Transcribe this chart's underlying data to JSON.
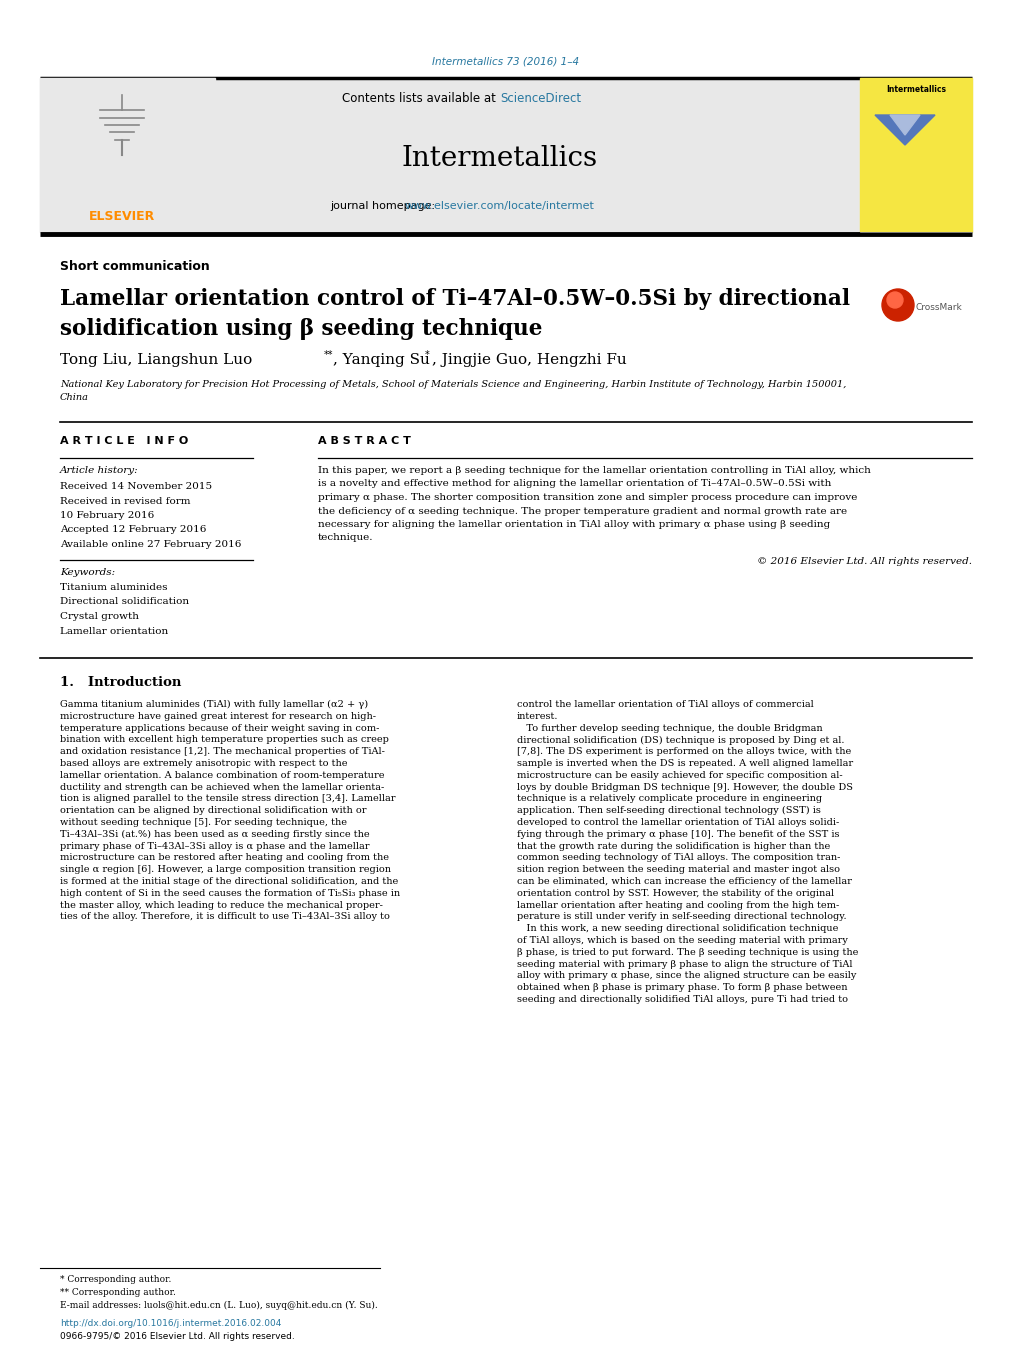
{
  "journal_ref": "Intermetallics 73 (2016) 1–4",
  "journal_ref_color": "#2878a0",
  "header_bg": "#e8e8e8",
  "journal_name": "Intermetallics",
  "journal_homepage_prefix": "journal homepage: ",
  "journal_homepage_url": "www.elsevier.com/locate/intermet",
  "elsevier_color": "#FF8C00",
  "contents_prefix": "Contents lists available at ",
  "sciencedirect_text": "ScienceDirect",
  "sciencedirect_color": "#2878a0",
  "section_label": "Short communication",
  "title_line1": "Lamellar orientation control of Ti–47Al–0.5W–0.5Si by directional",
  "title_line2": "solidification using β seeding technique",
  "affiliation": "National Key Laboratory for Precision Hot Processing of Metals, School of Materials Science and Engineering, Harbin Institute of Technology, Harbin 150001,\nChina",
  "article_info_header": "A R T I C L E   I N F O",
  "abstract_header": "A B S T R A C T",
  "article_history_label": "Article history:",
  "received1": "Received 14 November 2015",
  "received2": "Received in revised form",
  "received2b": "10 February 2016",
  "accepted": "Accepted 12 February 2016",
  "available": "Available online 27 February 2016",
  "keywords_label": "Keywords:",
  "keywords": [
    "Titanium aluminides",
    "Directional solidification",
    "Crystal growth",
    "Lamellar orientation"
  ],
  "abstract_text": "In this paper, we report a β seeding technique for the lamellar orientation controlling in TiAl alloy, which\nis a novelty and effective method for aligning the lamellar orientation of Ti–47Al–0.5W–0.5Si with\nprimary α phase. The shorter composition transition zone and simpler process procedure can improve\nthe deficiency of α seeding technique. The proper temperature gradient and normal growth rate are\nnecessary for aligning the lamellar orientation in TiAl alloy with primary α phase using β seeding\ntechnique.",
  "copyright": "© 2016 Elsevier Ltd. All rights reserved.",
  "intro_header": "1.   Introduction",
  "intro_col1": "Gamma titanium aluminides (TiAl) with fully lamellar (α2 + γ)\nmicrostructure have gained great interest for research on high-\ntemperature applications because of their weight saving in com-\nbination with excellent high temperature properties such as creep\nand oxidation resistance [1,2]. The mechanical properties of TiAl-\nbased alloys are extremely anisotropic with respect to the\nlamellar orientation. A balance combination of room-temperature\nductility and strength can be achieved when the lamellar orienta-\ntion is aligned parallel to the tensile stress direction [3,4]. Lamellar\norientation can be aligned by directional solidification with or\nwithout seeding technique [5]. For seeding technique, the\nTi–43Al–3Si (at.%) has been used as α seeding firstly since the\nprimary phase of Ti–43Al–3Si alloy is α phase and the lamellar\nmicrostructure can be restored after heating and cooling from the\nsingle α region [6]. However, a large composition transition region\nis formed at the initial stage of the directional solidification, and the\nhigh content of Si in the seed causes the formation of Ti₅Si₃ phase in\nthe master alloy, which leading to reduce the mechanical proper-\nties of the alloy. Therefore, it is difficult to use Ti–43Al–3Si alloy to",
  "intro_col2": "control the lamellar orientation of TiAl alloys of commercial\ninterest.\n   To further develop seeding technique, the double Bridgman\ndirectional solidification (DS) technique is proposed by Ding et al.\n[7,8]. The DS experiment is performed on the alloys twice, with the\nsample is inverted when the DS is repeated. A well aligned lamellar\nmicrostructure can be easily achieved for specific composition al-\nloys by double Bridgman DS technique [9]. However, the double DS\ntechnique is a relatively complicate procedure in engineering\napplication. Then self-seeding directional technology (SST) is\ndeveloped to control the lamellar orientation of TiAl alloys solidi-\nfying through the primary α phase [10]. The benefit of the SST is\nthat the growth rate during the solidification is higher than the\ncommon seeding technology of TiAl alloys. The composition tran-\nsition region between the seeding material and master ingot also\ncan be eliminated, which can increase the efficiency of the lamellar\norientation control by SST. However, the stability of the original\nlamellar orientation after heating and cooling from the high tem-\nperature is still under verify in self-seeding directional technology.\n   In this work, a new seeding directional solidification technique\nof TiAl alloys, which is based on the seeding material with primary\nβ phase, is tried to put forward. The β seeding technique is using the\nseeding material with primary β phase to align the structure of TiAl\nalloy with primary α phase, since the aligned structure can be easily\nobtained when β phase is primary phase. To form β phase between\nseeding and directionally solidified TiAl alloys, pure Ti had tried to",
  "footnote1": "* Corresponding author.",
  "footnote2": "** Corresponding author.",
  "footnote3": "E-mail addresses: luols@hit.edu.cn (L. Luo), suyq@hit.edu.cn (Y. Su).",
  "doi_text": "http://dx.doi.org/10.1016/j.intermet.2016.02.004",
  "doi_color": "#2878a0",
  "issn_text": "0966-9795/© 2016 Elsevier Ltd. All rights reserved.",
  "bg_color": "#ffffff",
  "text_color": "#000000"
}
